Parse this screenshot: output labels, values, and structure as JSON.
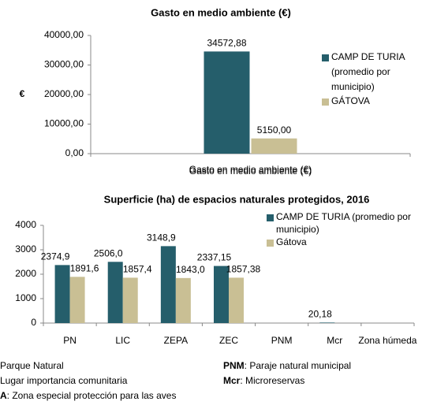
{
  "chart_data": [
    {
      "type": "bar",
      "title": "Gasto  en medio ambiente (€)",
      "y_label": "€",
      "x_label": "Gasto  en medio ambiente (€)",
      "categories": [
        "Gasto  en medio ambiente (€)"
      ],
      "series": [
        {
          "name": "CAMP DE TURIA (promedio por municipio)",
          "color": "#255e6b",
          "values": [
            34572.88
          ],
          "value_labels": [
            "34572,88"
          ]
        },
        {
          "name": "GÁTOVA",
          "color": "#c9bf94",
          "values": [
            5150
          ],
          "value_labels": [
            "5150,00"
          ]
        }
      ],
      "ylim": [
        0,
        40000
      ],
      "yticks": [
        {
          "value": 0,
          "label": "0,00"
        },
        {
          "value": 10000,
          "label": "10000,00"
        },
        {
          "value": 20000,
          "label": "20000,00"
        },
        {
          "value": 30000,
          "label": "30000,00"
        },
        {
          "value": 40000,
          "label": "40000,00"
        }
      ],
      "grid": false,
      "legend": "right"
    },
    {
      "type": "bar",
      "title": "Superficie (ha) de espacios naturales protegidos, 2016",
      "categories": [
        "PN",
        "LIC",
        "ZEPA",
        "ZEC",
        "PNM",
        "Mcr",
        "Zona húmeda"
      ],
      "series": [
        {
          "name": "CAMP DE TURIA (promedio por municipio)",
          "color": "#255e6b",
          "values": [
            2374.9,
            2506.0,
            3148.9,
            2337.15,
            null,
            20.18,
            null
          ],
          "value_labels": [
            "2374,9",
            "2506,0",
            "3148,9",
            "2337,15",
            null,
            "20,18",
            null
          ]
        },
        {
          "name": "Gátova",
          "color": "#c9bf94",
          "values": [
            1891.6,
            1857.4,
            1843.0,
            1857.38,
            null,
            null,
            null
          ],
          "value_labels": [
            "1891,6",
            "1857,4",
            "1843,0",
            "1857,38",
            null,
            null,
            null
          ]
        }
      ],
      "ylim": [
        0,
        4000
      ],
      "yticks": [
        0,
        1000,
        2000,
        3000,
        4000
      ],
      "grid": false,
      "legend": "top-right"
    }
  ],
  "notes": [
    {
      "text": "Parque Natural"
    },
    {
      "text": "Lugar importancia comunitaria"
    },
    {
      "term": "A",
      "text": ": Zona especial protección para las aves"
    },
    {
      "term": "PNM",
      "text": ": Paraje natural municipal"
    },
    {
      "term": "Mcr",
      "text": ": Microreservas"
    }
  ]
}
